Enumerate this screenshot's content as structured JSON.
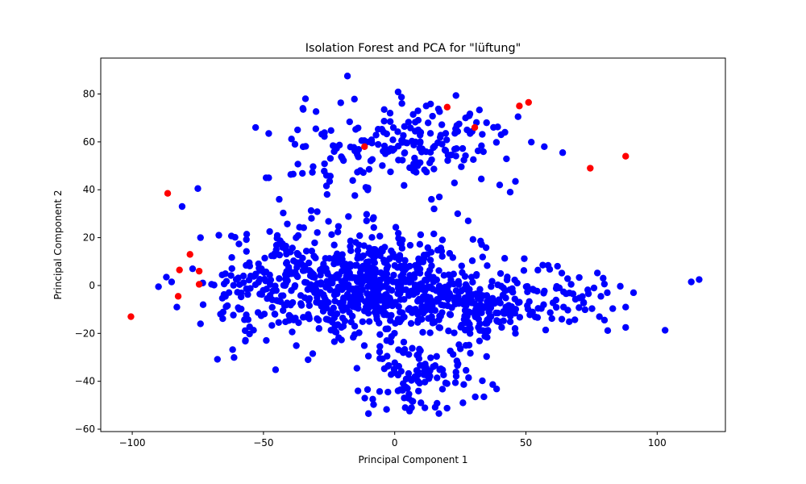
{
  "chart_data": {
    "type": "scatter",
    "title": "Isolation Forest and PCA for \"lüftung\"",
    "xlabel": "Principal Component 1",
    "ylabel": "Principal Component 2",
    "xlim": [
      -112,
      126
    ],
    "ylim": [
      -61,
      95
    ],
    "xticks": [
      -100,
      -50,
      0,
      50,
      100
    ],
    "yticks": [
      -60,
      -40,
      -20,
      0,
      20,
      40,
      60,
      80
    ],
    "grid": false,
    "legend": "none",
    "series": [
      {
        "color": "#0000ff",
        "clusters": [
          {
            "center": [
              -8,
              0
            ],
            "spread": [
              20,
              11
            ],
            "count": 620
          },
          {
            "center": [
              32,
              -8
            ],
            "spread": [
              9,
              7
            ],
            "count": 160
          },
          {
            "center": [
              62,
              -5
            ],
            "spread": [
              11,
              6
            ],
            "count": 70
          },
          {
            "center": [
              8,
              -38
            ],
            "spread": [
              12,
              7
            ],
            "count": 110
          },
          {
            "center": [
              -38,
              10
            ],
            "spread": [
              9,
              9
            ],
            "count": 60
          },
          {
            "center": [
              -50,
              -8
            ],
            "spread": [
              8,
              10
            ],
            "count": 55
          },
          {
            "center": [
              -62,
              0
            ],
            "spread": [
              5,
              9
            ],
            "count": 25
          },
          {
            "center": [
              5,
              60
            ],
            "spread": [
              18,
              8
            ],
            "count": 170
          },
          {
            "center": [
              -25,
              45
            ],
            "spread": [
              10,
              10
            ],
            "count": 15
          }
        ],
        "points": [
          [
            -18,
            87.5
          ],
          [
            -34,
            78
          ],
          [
            -35,
            74
          ],
          [
            -37,
            65
          ],
          [
            -38,
            59
          ],
          [
            -53,
            66
          ],
          [
            -48,
            63.5
          ],
          [
            -49,
            45
          ],
          [
            -48,
            45
          ],
          [
            -44,
            36
          ],
          [
            -75,
            40.5
          ],
          [
            -81,
            33
          ],
          [
            -74,
            20
          ],
          [
            -67,
            21
          ],
          [
            -90,
            -0.5
          ],
          [
            -87,
            3.5
          ],
          [
            -85,
            1.5
          ],
          [
            -77,
            7
          ],
          [
            -83,
            -9
          ],
          [
            -74,
            -16
          ],
          [
            -73,
            -8
          ],
          [
            113,
            1.5
          ],
          [
            116,
            2.5
          ],
          [
            91,
            -3
          ],
          [
            88,
            -9
          ],
          [
            88,
            -17.5
          ],
          [
            81,
            -3
          ],
          [
            78,
            -13
          ],
          [
            64,
            55.5
          ],
          [
            57,
            58
          ],
          [
            47,
            70.5
          ],
          [
            42,
            64
          ],
          [
            40,
            42
          ],
          [
            46,
            43.5
          ],
          [
            44,
            39
          ],
          [
            33,
            44.5
          ],
          [
            17,
            37
          ],
          [
            14,
            36
          ],
          [
            15,
            32
          ],
          [
            24,
            30
          ],
          [
            28,
            27
          ],
          [
            -11,
            41
          ],
          [
            -4,
            73.5
          ],
          [
            -8,
            12
          ],
          [
            12,
            75
          ],
          [
            35,
            68
          ],
          [
            27,
            70
          ],
          [
            -26,
            46
          ],
          [
            -33,
            -31
          ],
          [
            -14,
            -44
          ],
          [
            -10,
            -53.5
          ],
          [
            4,
            -51
          ],
          [
            10,
            -49
          ],
          [
            26,
            -49
          ],
          [
            34,
            -46.5
          ],
          [
            46,
            -20
          ]
        ]
      },
      {
        "color": "#ff0000",
        "points": [
          [
            -100.5,
            -13
          ],
          [
            -86.5,
            38.5
          ],
          [
            -82,
            6.5
          ],
          [
            -82.5,
            -4.5
          ],
          [
            -78,
            13
          ],
          [
            -74.5,
            6
          ],
          [
            -74.5,
            0.5
          ],
          [
            -11.5,
            58
          ],
          [
            20,
            74.5
          ],
          [
            30.5,
            66
          ],
          [
            47.5,
            75
          ],
          [
            51,
            76.5
          ],
          [
            74.5,
            49
          ],
          [
            88,
            54
          ]
        ]
      }
    ]
  }
}
